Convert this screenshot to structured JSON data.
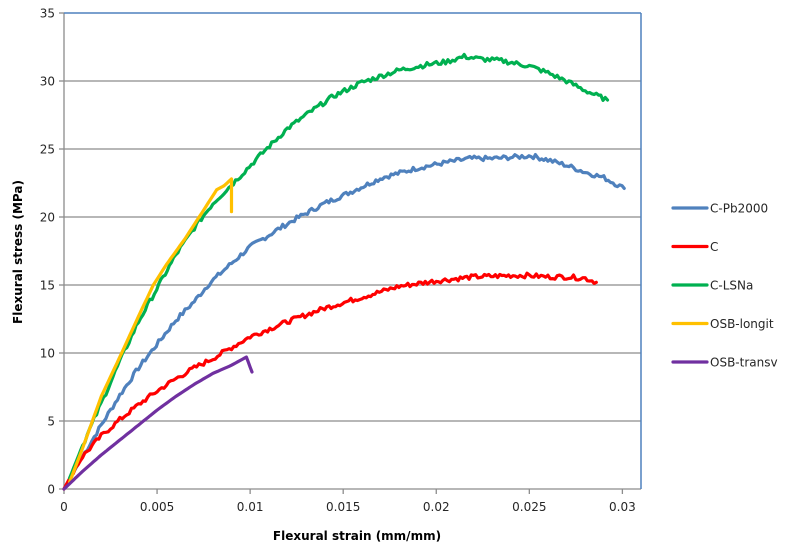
{
  "chart_data": {
    "type": "line",
    "title": "",
    "xlabel": "Flexural strain (mm/mm)",
    "ylabel": "Flexural stress (MPa)",
    "xlim": [
      0,
      0.031
    ],
    "ylim": [
      0,
      35
    ],
    "xticks": [
      "0",
      "0.005",
      "0.01",
      "0.015",
      "0.02",
      "0.025",
      "0.03"
    ],
    "xtick_values": [
      0,
      0.005,
      0.01,
      0.015,
      0.02,
      0.025,
      0.03
    ],
    "yticks": [
      "0",
      "5",
      "10",
      "15",
      "20",
      "25",
      "30",
      "35"
    ],
    "ytick_values": [
      0,
      5,
      10,
      15,
      20,
      25,
      30,
      35
    ],
    "grid": "horizontal",
    "legend_position": "right",
    "series": [
      {
        "name": "C-Pb2000",
        "color": "#4F81BD",
        "x": [
          0,
          0.001,
          0.002,
          0.003,
          0.004,
          0.0052,
          0.006,
          0.007,
          0.0078,
          0.009,
          0.01,
          0.0115,
          0.0125,
          0.014,
          0.0155,
          0.0171,
          0.019,
          0.0205,
          0.0218,
          0.023,
          0.0241,
          0.0251,
          0.026,
          0.027,
          0.028,
          0.029,
          0.0301
        ],
        "y": [
          0,
          2.4,
          4.7,
          6.9,
          8.9,
          11.0,
          12.4,
          13.8,
          15.1,
          16.6,
          17.8,
          19.1,
          19.9,
          21.0,
          21.9,
          22.9,
          23.6,
          24.0,
          24.3,
          24.3,
          24.4,
          24.5,
          24.2,
          23.8,
          23.3,
          22.9,
          22.1
        ]
      },
      {
        "name": "C",
        "color": "#FF0000",
        "x": [
          0,
          0.0005,
          0.001,
          0.002,
          0.003,
          0.004,
          0.005,
          0.006,
          0.007,
          0.008,
          0.009,
          0.01,
          0.012,
          0.014,
          0.016,
          0.018,
          0.02,
          0.022,
          0.024,
          0.025,
          0.026,
          0.027,
          0.028,
          0.0286
        ],
        "y": [
          0,
          1.3,
          2.4,
          3.9,
          5.1,
          6.2,
          7.2,
          8.1,
          8.9,
          9.6,
          10.4,
          11.2,
          12.3,
          13.3,
          14.1,
          14.9,
          15.3,
          15.6,
          15.7,
          15.7,
          15.6,
          15.6,
          15.5,
          15.2
        ]
      },
      {
        "name": "C-LSNa",
        "color": "#00B050",
        "x": [
          0.0003,
          0.001,
          0.002,
          0.003,
          0.004,
          0.0051,
          0.006,
          0.007,
          0.008,
          0.0091,
          0.0108,
          0.012,
          0.0132,
          0.0145,
          0.016,
          0.018,
          0.0195,
          0.0205,
          0.0215,
          0.0225,
          0.0235,
          0.025,
          0.026,
          0.027,
          0.028,
          0.0292
        ],
        "y": [
          0.8,
          3.2,
          6.3,
          9.4,
          12.3,
          15.0,
          17.2,
          19.2,
          21.0,
          22.5,
          24.9,
          26.5,
          27.7,
          28.9,
          29.9,
          30.8,
          31.2,
          31.4,
          31.8,
          31.6,
          31.5,
          31.1,
          30.6,
          30.0,
          29.3,
          28.6
        ]
      },
      {
        "name": "OSB-longit",
        "color": "#FFC000",
        "x": [
          0.0003,
          0.001,
          0.002,
          0.0031,
          0.004,
          0.0048,
          0.0055,
          0.0065,
          0.0075,
          0.0082,
          0.0086,
          0.009,
          0.009
        ],
        "y": [
          0.5,
          3.0,
          6.8,
          10.0,
          12.7,
          15.0,
          16.5,
          18.4,
          20.5,
          22.0,
          22.3,
          22.8,
          20.4
        ]
      },
      {
        "name": "OSB-transv",
        "color": "#7030A0",
        "x": [
          0,
          0.001,
          0.002,
          0.003,
          0.004,
          0.005,
          0.006,
          0.007,
          0.008,
          0.009,
          0.0098,
          0.0101
        ],
        "y": [
          0,
          1.3,
          2.5,
          3.6,
          4.7,
          5.8,
          6.8,
          7.7,
          8.5,
          9.1,
          9.7,
          8.6
        ]
      }
    ]
  }
}
